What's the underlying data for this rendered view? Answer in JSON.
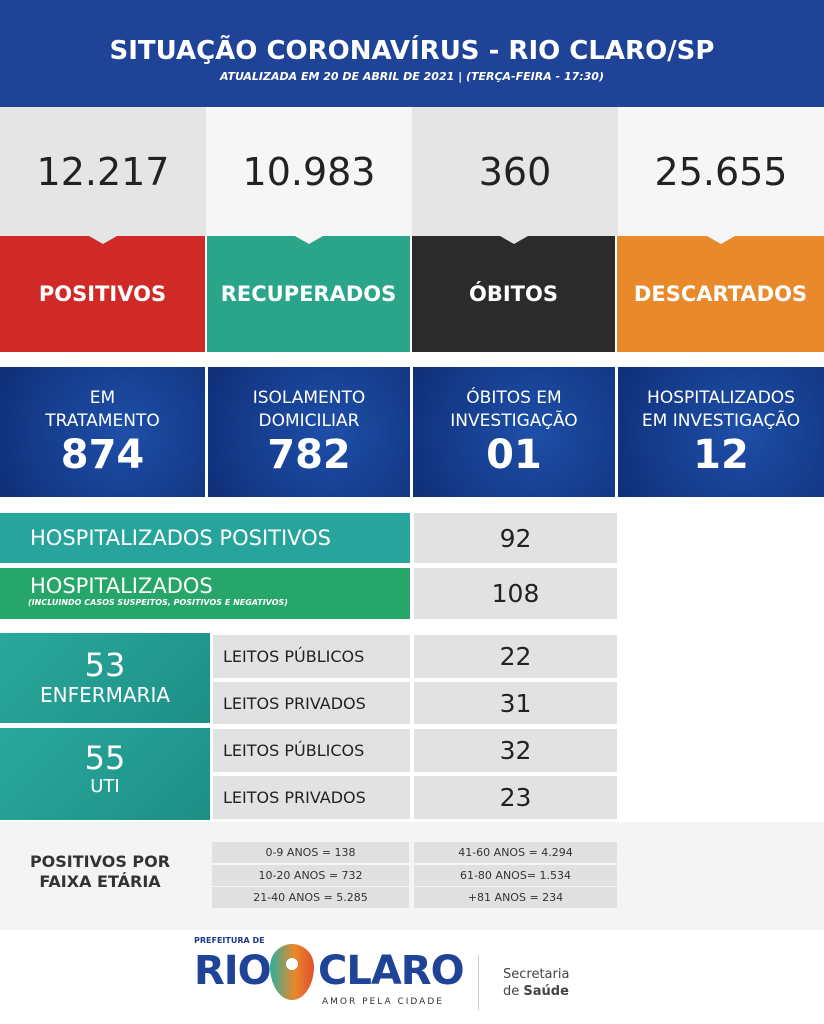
{
  "header": {
    "title": "SITUAÇÃO CORONAVÍRUS - RIO CLARO/SP",
    "subtitle": "ATUALIZADA EM 20 DE ABRIL DE 2021 | (TERÇA-FEIRA - 17:30)"
  },
  "stats": [
    {
      "value": "12.217",
      "label": "POSITIVOS",
      "color": "#cf2a27"
    },
    {
      "value": "10.983",
      "label": "RECUPERADOS",
      "color": "#2aa58a"
    },
    {
      "value": "360",
      "label": "ÓBITOS",
      "color": "#2b2b2b"
    },
    {
      "value": "25.655",
      "label": "DESCARTADOS",
      "color": "#e8892b"
    }
  ],
  "tiles": [
    {
      "l1": "EM",
      "l2": "TRATAMENTO",
      "value": "874"
    },
    {
      "l1": "ISOLAMENTO",
      "l2": "DOMICILIAR",
      "value": "782"
    },
    {
      "l1": "ÓBITOS EM",
      "l2": "INVESTIGAÇÃO",
      "value": "01"
    },
    {
      "l1": "HOSPITALIZADOS",
      "l2": "EM INVESTIGAÇÃO",
      "value": "12"
    }
  ],
  "hosp_pos": {
    "label": "HOSPITALIZADOS POSITIVOS",
    "value": "92"
  },
  "hosp": {
    "label": "HOSPITALIZADOS",
    "note": "(INCLUINDO CASOS SUSPEITOS, POSITIVOS E NEGATIVOS)",
    "value": "108"
  },
  "enfermaria": {
    "value": "53",
    "label": "ENFERMARIA",
    "rows": [
      {
        "label": "LEITOS PÚBLICOS",
        "value": "22"
      },
      {
        "label": "LEITOS PRIVADOS",
        "value": "31"
      }
    ]
  },
  "uti": {
    "value": "55",
    "label": "UTI",
    "rows": [
      {
        "label": "LEITOS PÚBLICOS",
        "value": "32"
      },
      {
        "label": "LEITOS PRIVADOS",
        "value": "23"
      }
    ]
  },
  "age": {
    "title_1": "POSITIVOS POR",
    "title_2": "FAIXA ETÁRIA",
    "items": [
      "0-9 ANOS = 138",
      "41-60 ANOS = 4.294",
      "10-20 ANOS = 732",
      "61-80 ANOS= 1.534",
      "21-40 ANOS = 5.285",
      "+81 ANOS = 234"
    ]
  },
  "footer": {
    "prefeitura": "PREFEITURA DE",
    "rio": "RIO",
    "claro": "CLARO",
    "slogan": "AMOR PELA CIDADE",
    "secretaria": "Secretaria",
    "de": "de",
    "saude": "Saúde"
  }
}
